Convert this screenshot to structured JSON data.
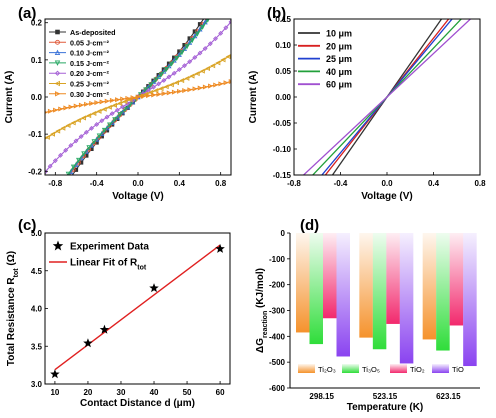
{
  "chart_data": [
    {
      "panel": "(a)",
      "type": "line",
      "xlabel": "Voltage (V)",
      "ylabel": "Current (A)",
      "xlim": [
        -0.9,
        0.9
      ],
      "ylim": [
        -0.21,
        0.21
      ],
      "xticks": [
        -0.8,
        -0.4,
        0.0,
        0.4,
        0.8
      ],
      "yticks": [
        -0.2,
        -0.1,
        0.0,
        0.1,
        0.2
      ],
      "xtick_labels": [
        "-0.8",
        "-0.4",
        "0.0",
        "0.4",
        "0.8"
      ],
      "ytick_labels": [
        "-0.2",
        "-0.1",
        "0.0",
        "0.1",
        "0.2"
      ],
      "legend_position": "top-left",
      "series": [
        {
          "name": "As-deposited",
          "color": "#333333",
          "marker": "square",
          "slope": 0.29
        },
        {
          "name": "0.05 J·cm⁻²",
          "color": "#e05a3a",
          "marker": "circle",
          "slope": 0.275
        },
        {
          "name": "0.10 J·cm⁻²",
          "color": "#3a72d8",
          "marker": "triangle-up",
          "slope": 0.27
        },
        {
          "name": "0.15 J·cm⁻²",
          "color": "#27a863",
          "marker": "triangle-down",
          "slope": 0.265
        },
        {
          "name": "0.20 J·cm⁻²",
          "color": "#a561d6",
          "marker": "diamond",
          "slope": 0.175
        },
        {
          "name": "0.25 J·cm⁻²",
          "color": "#d9a324",
          "marker": "triangle-left",
          "slope": 0.098
        },
        {
          "name": "0.30 J·cm⁻²",
          "color": "#ee8a22",
          "marker": "triangle-right",
          "slope": 0.036
        }
      ]
    },
    {
      "panel": "(b)",
      "type": "line",
      "xlabel": "Voltage (V)",
      "ylabel": "Current (A)",
      "xlim": [
        -0.8,
        0.8
      ],
      "ylim": [
        -0.15,
        0.15
      ],
      "xticks": [
        -0.8,
        -0.4,
        0.0,
        0.4,
        0.8
      ],
      "yticks": [
        -0.15,
        -0.1,
        -0.05,
        0.0,
        0.05,
        0.1,
        0.15
      ],
      "xtick_labels": [
        "-0.8",
        "-0.4",
        "0.0",
        "0.4",
        "0.8"
      ],
      "ytick_labels": [
        "-0.15",
        "-0.10",
        "-0.05",
        "0.00",
        "0.05",
        "0.10",
        "0.15"
      ],
      "legend_position": "top-left",
      "series": [
        {
          "name": "10 μm",
          "color": "#333333",
          "slope": 0.32
        },
        {
          "name": "20 μm",
          "color": "#d82020",
          "slope": 0.283
        },
        {
          "name": "25 μm",
          "color": "#2040d0",
          "slope": 0.268
        },
        {
          "name": "40 μm",
          "color": "#22a03a",
          "slope": 0.235
        },
        {
          "name": "60 μm",
          "color": "#a050d0",
          "slope": 0.209
        }
      ]
    },
    {
      "panel": "(c)",
      "type": "scatter",
      "xlabel": "Contact Distance d (μm)",
      "ylabel": "Total Resistance R",
      "ylabel_sub": "tot",
      "ylabel_unit": " (Ω)",
      "xlim": [
        7,
        63
      ],
      "ylim": [
        3.0,
        5.0
      ],
      "xticks": [
        10,
        20,
        30,
        40,
        50,
        60
      ],
      "yticks": [
        3.0,
        3.5,
        4.0,
        4.5,
        5.0
      ],
      "xtick_labels": [
        "10",
        "20",
        "30",
        "40",
        "50",
        "60"
      ],
      "ytick_labels": [
        "3.0",
        "3.5",
        "4.0",
        "4.5",
        "5.0"
      ],
      "legend_position": "top-left",
      "points": {
        "name": "Experiment Data",
        "x": [
          10,
          20,
          25,
          40,
          60
        ],
        "y": [
          3.13,
          3.54,
          3.72,
          4.27,
          4.79
        ]
      },
      "fit": {
        "name": "Linear Fit of R",
        "name_sub": "tot",
        "x": [
          10,
          60
        ],
        "y": [
          3.19,
          4.84
        ],
        "color": "#e02020"
      }
    },
    {
      "panel": "(d)",
      "type": "bar",
      "xlabel": "Temperature (K)",
      "ylabel": "ΔG",
      "ylabel_sub": "reaction",
      "ylabel_unit": " (KJ/mol)",
      "ylim": [
        -600,
        0
      ],
      "yticks": [
        0,
        -100,
        -200,
        -300,
        -400,
        -500,
        -600
      ],
      "ytick_labels": [
        "0",
        "-100",
        "-200",
        "-300",
        "-400",
        "-500",
        "-600"
      ],
      "categories": [
        "298.15",
        "523.15",
        "623.15"
      ],
      "legend_position": "bottom",
      "series": [
        {
          "name": "Ti₂O₃",
          "color": "#f5922c",
          "values": [
            -385,
            -405,
            -412
          ]
        },
        {
          "name": "Ti₃O₅",
          "color": "#2fdd3a",
          "values": [
            -430,
            -450,
            -455
          ]
        },
        {
          "name": "TiO₂",
          "color": "#f2296d",
          "values": [
            -330,
            -352,
            -358
          ]
        },
        {
          "name": "TiO",
          "color": "#8a43f0",
          "values": [
            -478,
            -505,
            -515
          ]
        }
      ]
    }
  ]
}
